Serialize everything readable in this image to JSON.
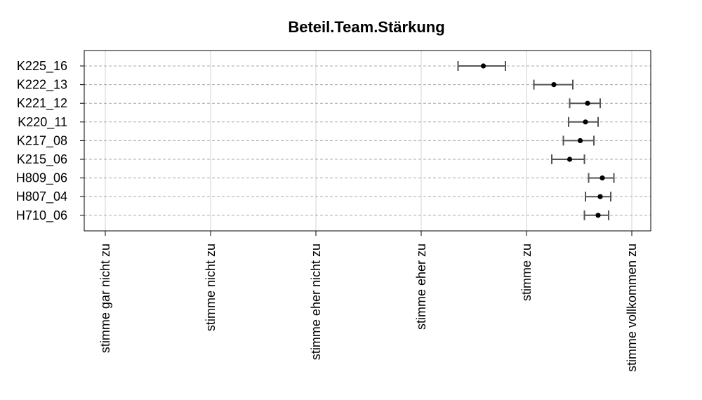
{
  "chart_data": {
    "type": "scatter",
    "title": "Beteil.Team.Stärkung",
    "xlabel": "",
    "ylabel": "",
    "x_ticks": [
      {
        "value": 1,
        "label": "stimme gar nicht zu"
      },
      {
        "value": 2,
        "label": "stimme nicht zu"
      },
      {
        "value": 3,
        "label": "stimme eher nicht zu"
      },
      {
        "value": 4,
        "label": "stimme eher zu"
      },
      {
        "value": 5,
        "label": "stimme zu"
      },
      {
        "value": 6,
        "label": "stimme vollkommen zu"
      }
    ],
    "xlim": [
      0.8,
      6.2
    ],
    "grid": true,
    "categories": [
      "K225_16",
      "K222_13",
      "K221_12",
      "K220_11",
      "K217_08",
      "K215_06",
      "H809_06",
      "H807_04",
      "H710_06"
    ],
    "values": [
      4.59,
      5.26,
      5.58,
      5.56,
      5.51,
      5.41,
      5.72,
      5.7,
      5.68
    ],
    "ci_low": [
      4.35,
      5.07,
      5.41,
      5.4,
      5.35,
      5.24,
      5.59,
      5.56,
      5.55
    ],
    "ci_high": [
      4.8,
      5.44,
      5.7,
      5.68,
      5.64,
      5.55,
      5.83,
      5.8,
      5.78
    ]
  }
}
